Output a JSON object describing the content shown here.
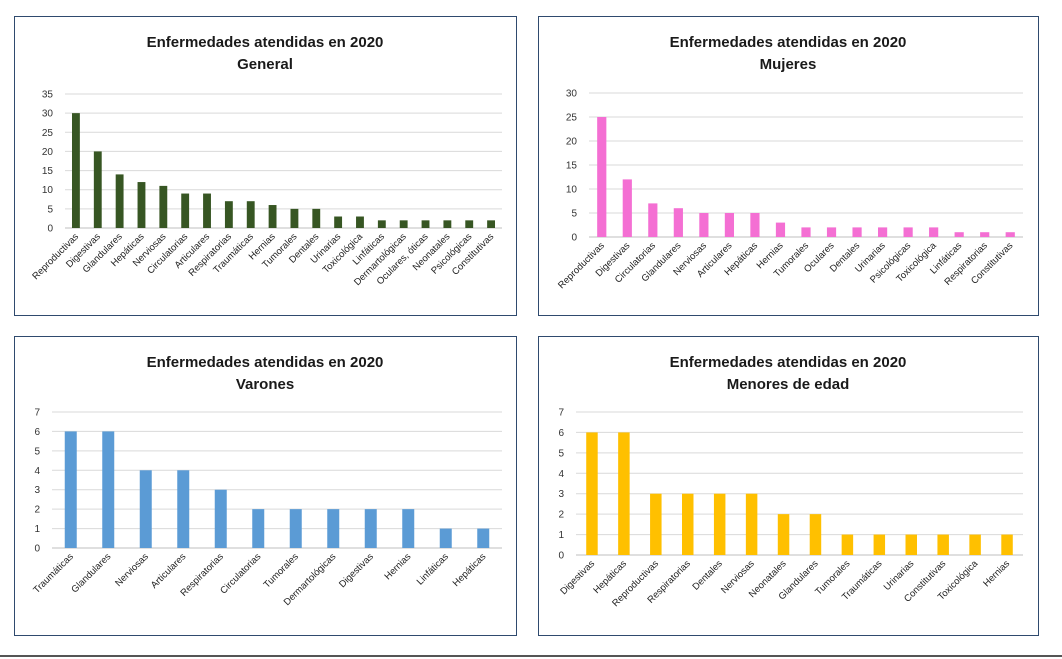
{
  "chart_data": [
    {
      "type": "bar",
      "title": "Enfermedades atendidas en 2020",
      "subtitle": "General",
      "color": "#375623",
      "ylim": [
        0,
        35
      ],
      "ystep": 5,
      "categories": [
        "Reproductivas",
        "Digestivas",
        "Glandulares",
        "Hepáticas",
        "Nerviosas",
        "Circulatorias",
        "Articulares",
        "Respiratorias",
        "Traumáticas",
        "Hernias",
        "Tumorales",
        "Dentales",
        "Urinarias",
        "Toxicológica",
        "Linfáticas",
        "Dermartológicas",
        "Oculares, óticas",
        "Neonatales",
        "Psicológicas",
        "Constitutivas"
      ],
      "values": [
        30,
        20,
        14,
        12,
        11,
        9,
        9,
        7,
        7,
        6,
        5,
        5,
        3,
        3,
        2,
        2,
        2,
        2,
        2,
        2
      ]
    },
    {
      "type": "bar",
      "title": "Enfermedades atendidas en 2020",
      "subtitle": "Mujeres",
      "color": "#f46fd3",
      "ylim": [
        0,
        30
      ],
      "ystep": 5,
      "categories": [
        "Reproductivas",
        "Digestivas",
        "Circulatorias",
        "Glandulares",
        "Nerviosas",
        "Articulares",
        "Hepáticas",
        "Hernias",
        "Tumorales",
        "Oculares",
        "Dentales",
        "Urinarias",
        "Psicológicas",
        "Toxicológica",
        "Linfáticas",
        "Respiratorias",
        "Constitutivas"
      ],
      "values": [
        25,
        12,
        7,
        6,
        5,
        5,
        5,
        3,
        2,
        2,
        2,
        2,
        2,
        2,
        1,
        1,
        1
      ]
    },
    {
      "type": "bar",
      "title": "Enfermedades atendidas en 2020",
      "subtitle": "Varones",
      "color": "#5b9bd5",
      "ylim": [
        0,
        7
      ],
      "ystep": 1,
      "categories": [
        "Traumáticas",
        "Glandulares",
        "Nerviosas",
        "Articulares",
        "Respiratorias",
        "Circulatorias",
        "Tumorales",
        "Dermartológicas",
        "Digestivas",
        "Hernias",
        "Linfáticas",
        "Hepáticas"
      ],
      "values": [
        6,
        6,
        4,
        4,
        3,
        2,
        2,
        2,
        2,
        2,
        1,
        1
      ]
    },
    {
      "type": "bar",
      "title": "Enfermedades atendidas en 2020",
      "subtitle": "Menores de edad",
      "color": "#ffc000",
      "ylim": [
        0,
        7
      ],
      "ystep": 1,
      "categories": [
        "Digestivas",
        "Hepáticas",
        "Reproductivas",
        "Respiratorias",
        "Dentales",
        "Nerviosas",
        "Neonatales",
        "Glandulares",
        "Tumorales",
        "Traumáticas",
        "Urinarias",
        "Constitutivas",
        "Toxicológica",
        "Hernias"
      ],
      "values": [
        6,
        6,
        3,
        3,
        3,
        3,
        2,
        2,
        1,
        1,
        1,
        1,
        1,
        1
      ]
    }
  ]
}
